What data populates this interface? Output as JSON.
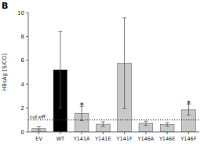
{
  "chart_data": {
    "type": "bar",
    "panel_label": "B",
    "ylabel": "HBsAg [S/CO]",
    "categories": [
      "EV",
      "WT",
      "Y141A",
      "Y141E",
      "Y141F",
      "Y146A",
      "Y146E",
      "Y146F"
    ],
    "values": [
      0.28,
      5.2,
      1.55,
      0.65,
      5.75,
      0.72,
      0.62,
      1.85
    ],
    "errors": [
      0.15,
      3.2,
      0.6,
      0.2,
      3.8,
      0.18,
      0.15,
      0.45
    ],
    "colors": [
      "#c8c8c8",
      "#000000",
      "#c8c8c8",
      "#c8c8c8",
      "#c8c8c8",
      "#c8c8c8",
      "#c8c8c8",
      "#c8c8c8"
    ],
    "ylim": [
      0,
      10
    ],
    "yticks": [
      0,
      2,
      4,
      6,
      8,
      10
    ],
    "annotations": [
      {
        "type": "hline",
        "y": 1.0,
        "text": "cut-off"
      },
      {
        "type": "marker",
        "category": "Y141A",
        "text": "*"
      },
      {
        "type": "marker",
        "category": "Y146F",
        "text": "*"
      }
    ]
  }
}
